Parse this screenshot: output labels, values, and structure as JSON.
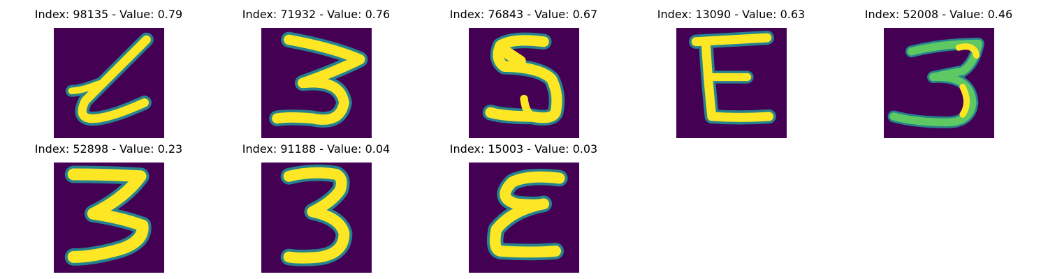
{
  "figure": {
    "colors": {
      "background": "#440154",
      "stroke_dark": "#26828e",
      "stroke_mid": "#5ec962",
      "stroke_core": "#fde725"
    },
    "panels": [
      {
        "index": "98135",
        "value": "0.79",
        "title": "Index: 98135 - Value: 0.79",
        "glyph": "l-shape"
      },
      {
        "index": "71932",
        "value": "0.76",
        "title": "Index: 71932 - Value: 0.76",
        "glyph": "3"
      },
      {
        "index": "76843",
        "value": "0.67",
        "title": "Index: 76843 - Value: 0.67",
        "glyph": "5"
      },
      {
        "index": "13090",
        "value": "0.63",
        "title": "Index: 13090 - Value: 0.63",
        "glyph": "E"
      },
      {
        "index": "52008",
        "value": "0.46",
        "title": "Index: 52008 - Value: 0.46",
        "glyph": "3"
      },
      {
        "index": "52898",
        "value": "0.23",
        "title": "Index: 52898 - Value: 0.23",
        "glyph": "3"
      },
      {
        "index": "91188",
        "value": "0.04",
        "title": "Index: 91188 - Value: 0.04",
        "glyph": "3"
      },
      {
        "index": "15003",
        "value": "0.03",
        "title": "Index: 15003 - Value: 0.03",
        "glyph": "epsilon"
      }
    ]
  }
}
